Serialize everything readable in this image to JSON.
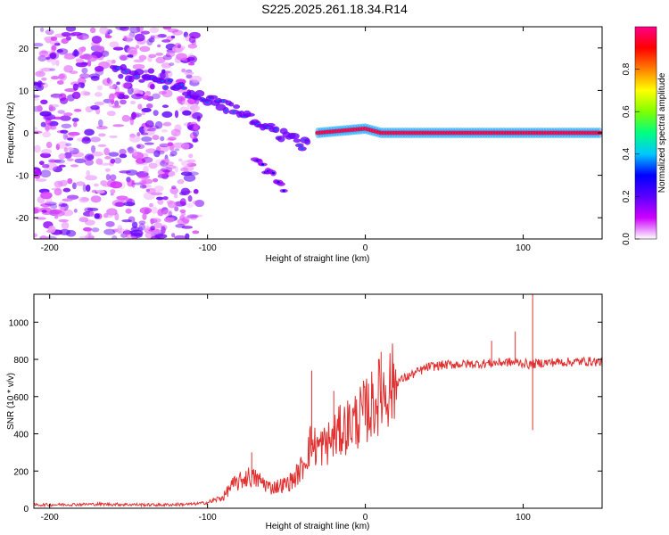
{
  "title": "S225.2025.261.18.34.R14",
  "colorbar": {
    "label": "Normalized spectral amplitude",
    "ticks": [
      "0.0",
      "0.2",
      "0.4",
      "0.6",
      "0.8"
    ],
    "tick_values": [
      0.0,
      0.2,
      0.4,
      0.6,
      0.8
    ],
    "range": [
      0.0,
      1.0
    ],
    "colors": [
      "#ffffff",
      "#cc00ff",
      "#5a00ff",
      "#0000ff",
      "#00c8ff",
      "#00ff80",
      "#80ff00",
      "#ffff00",
      "#ff8000",
      "#ff0000",
      "#ff0088"
    ]
  },
  "chart_data": [
    {
      "type": "heatmap",
      "title": "S225.2025.261.18.34.R14",
      "xlabel": "Height of straight line (km)",
      "ylabel": "Frequency (Hz)",
      "xlim": [
        -210,
        150
      ],
      "ylim": [
        -25,
        25
      ],
      "xticks": [
        "-200",
        "-100",
        "0",
        "100"
      ],
      "xtick_values": [
        -200,
        -100,
        0,
        100
      ],
      "yticks": [
        "20",
        "10",
        "0",
        "-10",
        "-20"
      ],
      "ytick_values": [
        20,
        10,
        0,
        -10,
        -20
      ],
      "noise_region": {
        "x": [
          -210,
          -105
        ],
        "y": [
          -25,
          25
        ],
        "amplitude": 0.15
      },
      "features": [
        {
          "name": "descending-trace",
          "points": [
            [
              -160,
              15
            ],
            [
              -140,
              13
            ],
            [
              -120,
              11
            ],
            [
              -100,
              8
            ],
            [
              -85,
              6
            ],
            [
              -70,
              3
            ],
            [
              -55,
              0
            ],
            [
              -45,
              -2
            ],
            [
              -35,
              -3
            ]
          ],
          "amplitude": 0.3
        },
        {
          "name": "lower-branch",
          "points": [
            [
              -70,
              -7
            ],
            [
              -60,
              -10
            ],
            [
              -50,
              -14
            ]
          ],
          "amplitude": 0.25
        },
        {
          "name": "carrier-line",
          "points": [
            [
              -30,
              0
            ],
            [
              0,
              1
            ],
            [
              10,
              0
            ],
            [
              150,
              0
            ]
          ],
          "amplitude": 0.95
        }
      ]
    },
    {
      "type": "line",
      "xlabel": "Height of straight line (km)",
      "ylabel": "SNR (10 * v/v)",
      "xlim": [
        -210,
        150
      ],
      "ylim": [
        0,
        1150
      ],
      "xticks": [
        "-200",
        "-100",
        "0",
        "100"
      ],
      "xtick_values": [
        -200,
        -100,
        0,
        100
      ],
      "yticks": [
        "0",
        "200",
        "400",
        "600",
        "800",
        "1000"
      ],
      "ytick_values": [
        0,
        200,
        400,
        600,
        800,
        1000
      ],
      "series": [
        {
          "name": "SNR",
          "color": "#e03030",
          "x": [
            -210,
            -190,
            -170,
            -150,
            -130,
            -110,
            -100,
            -90,
            -85,
            -80,
            -75,
            -70,
            -65,
            -60,
            -55,
            -50,
            -45,
            -40,
            -35,
            -30,
            -25,
            -20,
            -15,
            -10,
            -5,
            0,
            5,
            10,
            15,
            20,
            25,
            30,
            35,
            40,
            50,
            60,
            70,
            80,
            90,
            100,
            105,
            110,
            120,
            130,
            140,
            150
          ],
          "y": [
            18,
            20,
            22,
            20,
            18,
            22,
            30,
            60,
            120,
            140,
            170,
            160,
            140,
            110,
            120,
            130,
            160,
            220,
            340,
            330,
            340,
            380,
            420,
            450,
            480,
            520,
            560,
            620,
            650,
            680,
            700,
            720,
            740,
            760,
            770,
            775,
            775,
            780,
            785,
            780,
            770,
            780,
            785,
            785,
            790,
            785
          ]
        }
      ],
      "spikes": [
        {
          "x": -72,
          "y": 300
        },
        {
          "x": -34,
          "y": 740
        },
        {
          "x": -20,
          "y": 630
        },
        {
          "x": 10,
          "y": 840
        },
        {
          "x": 80,
          "y": 900
        },
        {
          "x": 95,
          "y": 950
        },
        {
          "x": 106,
          "y": 1150
        },
        {
          "x": 106,
          "y": 420
        }
      ]
    }
  ]
}
